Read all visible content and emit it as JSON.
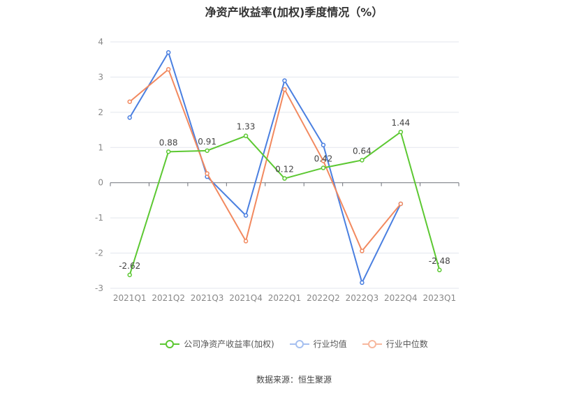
{
  "chart_data": {
    "type": "line",
    "title": "净资产收益率(加权)季度情况（%）",
    "categories": [
      "2021Q1",
      "2021Q2",
      "2021Q3",
      "2021Q4",
      "2022Q1",
      "2022Q2",
      "2022Q3",
      "2022Q4",
      "2023Q1"
    ],
    "ylim": [
      -3,
      4
    ],
    "yticks": [
      -3,
      -2,
      -1,
      0,
      1,
      2,
      3,
      4
    ],
    "grid": true,
    "legend_position": "bottom",
    "series": [
      {
        "name": "公司净资产收益率(加权)",
        "color": "#5cc832",
        "labeled": true,
        "values": [
          -2.62,
          0.88,
          0.91,
          1.33,
          0.12,
          0.42,
          0.64,
          1.44,
          -2.48
        ]
      },
      {
        "name": "行业均值",
        "color": "#4a7fe0",
        "labeled": false,
        "values": [
          1.85,
          3.7,
          0.17,
          -0.93,
          2.9,
          1.07,
          -2.84,
          -0.6,
          null
        ]
      },
      {
        "name": "行业中位数",
        "color": "#f2895f",
        "labeled": false,
        "values": [
          2.3,
          3.22,
          0.26,
          -1.66,
          2.65,
          0.62,
          -1.94,
          -0.6,
          null
        ]
      }
    ]
  },
  "footer": {
    "source": "数据来源：恒生聚源"
  }
}
